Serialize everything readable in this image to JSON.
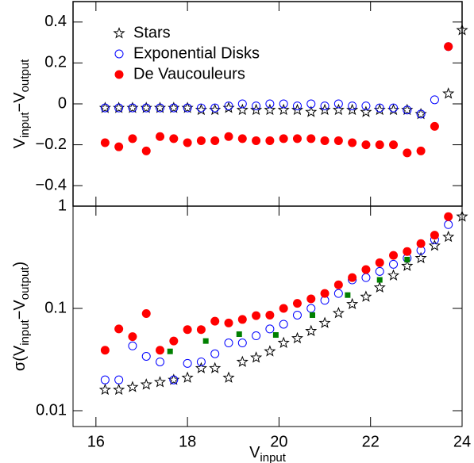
{
  "chart_data": [
    {
      "type": "scatter",
      "ylabel": [
        "V",
        "input",
        "−V",
        "output"
      ],
      "legend": "upper left",
      "xlim": [
        15.5,
        24
      ],
      "ylim": [
        -0.5,
        0.5
      ],
      "yticks": [
        {
          "value": -0.4,
          "label": "−0.4"
        },
        {
          "value": -0.2,
          "label": "−0.2"
        },
        0,
        0.2,
        0.4
      ],
      "x": [
        16.2,
        16.5,
        16.8,
        17.1,
        17.4,
        17.7,
        18.0,
        18.3,
        18.6,
        18.9,
        19.2,
        19.5,
        19.8,
        20.1,
        20.4,
        20.7,
        21.0,
        21.3,
        21.6,
        21.9,
        22.2,
        22.5,
        22.8,
        23.1,
        23.4,
        23.7,
        24.0
      ],
      "series": [
        {
          "name": "Stars",
          "color": "#000000",
          "marker": "star",
          "values": [
            -0.02,
            -0.02,
            -0.02,
            -0.02,
            -0.02,
            -0.02,
            -0.02,
            -0.03,
            -0.03,
            -0.02,
            -0.03,
            -0.03,
            -0.03,
            -0.03,
            -0.03,
            -0.04,
            -0.03,
            -0.03,
            -0.03,
            -0.04,
            -0.03,
            -0.03,
            -0.03,
            -0.05,
            null,
            0.05,
            0.36
          ]
        },
        {
          "name": "Exponential Disks",
          "color": "#0000ff",
          "marker": "circle",
          "values": [
            -0.02,
            -0.02,
            -0.02,
            -0.02,
            -0.02,
            -0.02,
            -0.02,
            -0.02,
            -0.02,
            -0.01,
            0,
            -0.01,
            0,
            0,
            -0.01,
            0,
            -0.01,
            0,
            -0.01,
            -0.01,
            -0.02,
            -0.02,
            -0.03,
            -0.05,
            0.02,
            0.28,
            null
          ]
        },
        {
          "name": "De Vaucouleurs",
          "color": "#ff0000",
          "marker": "dot",
          "values": [
            -0.19,
            -0.21,
            -0.17,
            -0.23,
            -0.16,
            -0.17,
            -0.19,
            -0.18,
            -0.18,
            -0.16,
            -0.17,
            -0.18,
            -0.18,
            -0.17,
            -0.17,
            -0.17,
            -0.18,
            -0.18,
            -0.19,
            -0.2,
            -0.2,
            -0.2,
            -0.24,
            -0.23,
            -0.11,
            0.28,
            null
          ]
        }
      ]
    },
    {
      "type": "scatter",
      "ylabel": [
        "σ(V",
        "input",
        "−V",
        "output",
        ")"
      ],
      "xlabel": [
        "V",
        "input"
      ],
      "xlim": [
        15.5,
        24
      ],
      "ylim": [
        0.007,
        1
      ],
      "log_y": true,
      "xticks": [
        16,
        18,
        20,
        22,
        24
      ],
      "yticks": [
        0.01,
        0.1,
        1
      ],
      "x": [
        16.2,
        16.5,
        16.8,
        17.1,
        17.4,
        17.7,
        18.0,
        18.3,
        18.6,
        18.9,
        19.2,
        19.5,
        19.8,
        20.1,
        20.4,
        20.7,
        21.0,
        21.3,
        21.6,
        21.9,
        22.2,
        22.5,
        22.8,
        23.1,
        23.4,
        23.7,
        24.0
      ],
      "series": [
        {
          "color": "#000000",
          "marker": "star",
          "values": [
            0.016,
            0.016,
            0.017,
            0.018,
            0.019,
            0.02,
            0.021,
            0.026,
            0.026,
            0.021,
            0.03,
            0.033,
            0.038,
            0.046,
            0.051,
            0.06,
            0.072,
            0.09,
            0.11,
            0.13,
            0.16,
            0.21,
            0.26,
            0.31,
            0.41,
            0.5,
            0.79
          ]
        },
        {
          "color": "#0000ff",
          "marker": "circle",
          "values": [
            0.02,
            0.02,
            0.043,
            0.034,
            0.03,
            0.02,
            0.029,
            0.03,
            0.036,
            0.046,
            0.046,
            0.054,
            0.063,
            0.07,
            0.086,
            0.1,
            0.12,
            0.14,
            0.19,
            0.2,
            0.23,
            0.27,
            0.31,
            0.37,
            0.47,
            0.66,
            null
          ]
        },
        {
          "color": "#ff0000",
          "marker": "dot",
          "values": [
            0.039,
            0.063,
            0.053,
            0.089,
            0.039,
            0.048,
            0.062,
            0.062,
            0.075,
            0.072,
            0.078,
            0.085,
            0.086,
            0.1,
            0.112,
            0.124,
            0.14,
            0.17,
            0.2,
            0.24,
            0.28,
            0.33,
            0.36,
            0.43,
            0.52,
            0.79,
            null
          ]
        },
        {
          "color": "#008000",
          "marker": "square",
          "x": [
            17.62,
            18.4,
            19.13,
            19.93,
            20.73,
            21.5,
            22.2,
            22.8
          ],
          "values": [
            0.038,
            0.048,
            0.056,
            0.055,
            0.086,
            0.135,
            0.19,
            0.3
          ]
        }
      ]
    }
  ]
}
